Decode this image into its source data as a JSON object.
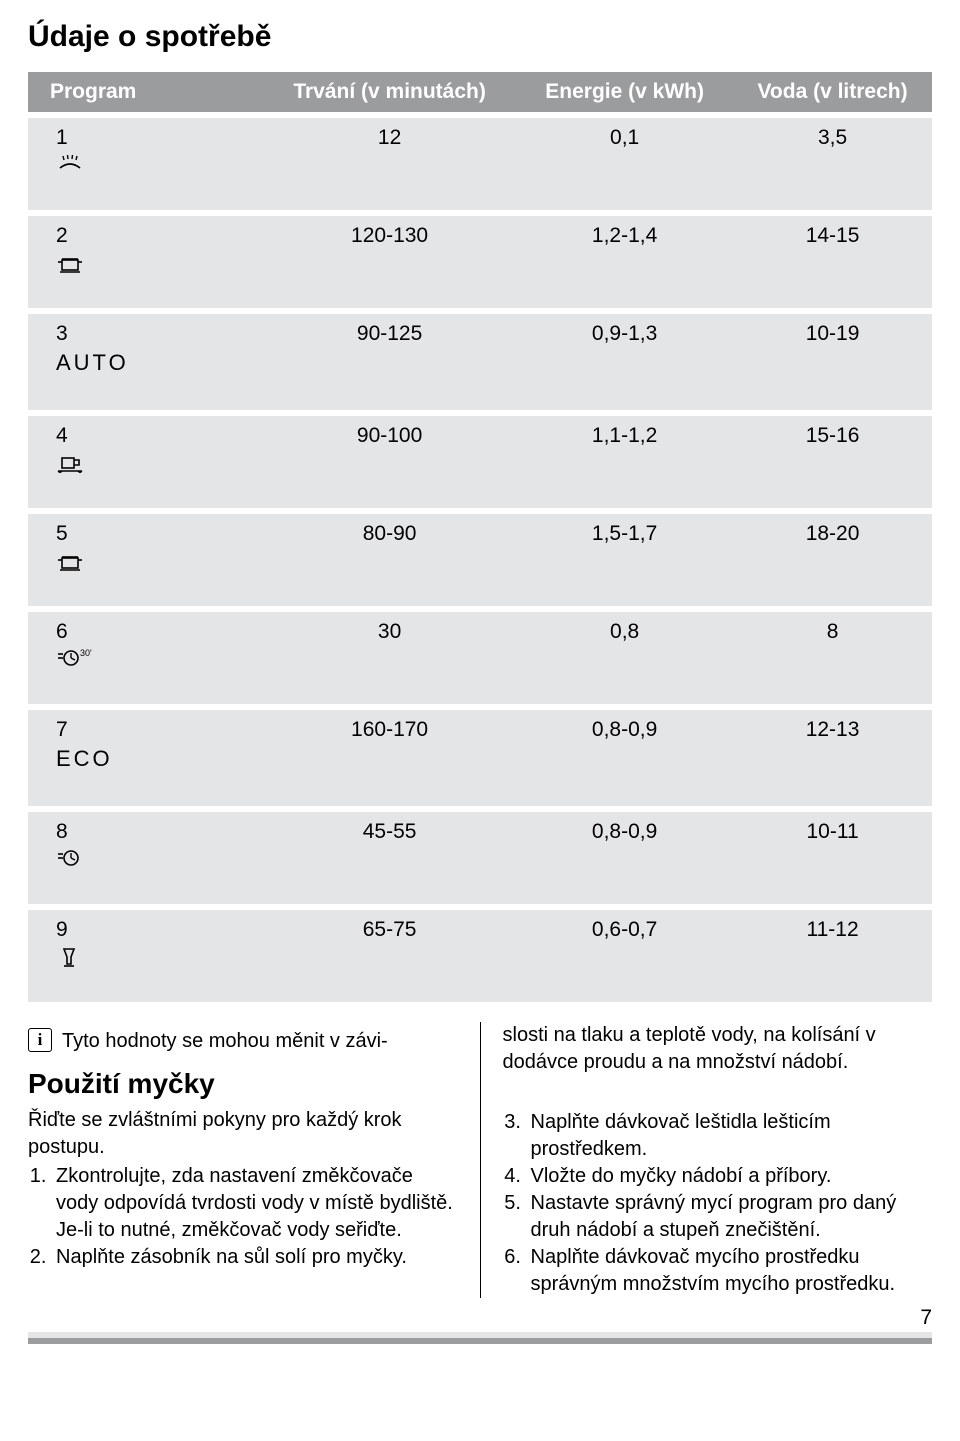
{
  "heading_main": "Údaje o spotřebě",
  "table": {
    "headers": [
      "Program",
      "Trvání (v minutách)",
      "Energie (v kWh)",
      "Voda (v litrech)"
    ],
    "rows": [
      {
        "num": "1",
        "label": "",
        "icon": "shower",
        "duration": "12",
        "energy": "0,1",
        "water": "3,5"
      },
      {
        "num": "2",
        "label": "",
        "icon": "pot",
        "duration": "120-130",
        "energy": "1,2-1,4",
        "water": "14-15"
      },
      {
        "num": "3",
        "label": "AUTO",
        "icon": "",
        "duration": "90-125",
        "energy": "0,9-1,3",
        "water": "10-19"
      },
      {
        "num": "4",
        "label": "",
        "icon": "cup",
        "duration": "90-100",
        "energy": "1,1-1,2",
        "water": "15-16"
      },
      {
        "num": "5",
        "label": "",
        "icon": "pot",
        "duration": "80-90",
        "energy": "1,5-1,7",
        "water": "18-20"
      },
      {
        "num": "6",
        "label": "",
        "icon": "clock30",
        "duration": "30",
        "energy": "0,8",
        "water": "8"
      },
      {
        "num": "7",
        "label": "ECO",
        "icon": "",
        "duration": "160-170",
        "energy": "0,8-0,9",
        "water": "12-13"
      },
      {
        "num": "8",
        "label": "",
        "icon": "clock",
        "duration": "45-55",
        "energy": "0,8-0,9",
        "water": "10-11"
      },
      {
        "num": "9",
        "label": "",
        "icon": "glass",
        "duration": "65-75",
        "energy": "0,6-0,7",
        "water": "11-12"
      }
    ]
  },
  "info_icon_letter": "i",
  "note_left": "Tyto hodnoty se mohou měnit v závi-",
  "note_right": "slosti na tlaku a teplotě vody, na kolísání v dodávce proudu a na množství nádobí.",
  "heading_use": "Použití myčky",
  "intro_left": "Řiďte se zvláštními pokyny pro každý krok postupu.",
  "steps_left": [
    "Zkontrolujte, zda nastavení změkčovače vody odpovídá tvrdosti vody v místě bydliště. Je-li to nutné, změkčovač vody seřiďte.",
    "Naplňte zásobník na sůl solí pro myčky."
  ],
  "steps_right": [
    "Naplňte dávkovač leštidla lešticím prostředkem.",
    "Vložte do myčky nádobí a příbory.",
    "Nastavte správný mycí program pro daný druh nádobí a stupeň znečištění.",
    "Naplňte dávkovač mycího prostředku správným množstvím mycího prostředku."
  ],
  "page_number": "7",
  "colors": {
    "header_bg": "#9b9c9e",
    "header_fg": "#ffffff",
    "row_bg": "#e4e5e7",
    "text": "#000000"
  }
}
